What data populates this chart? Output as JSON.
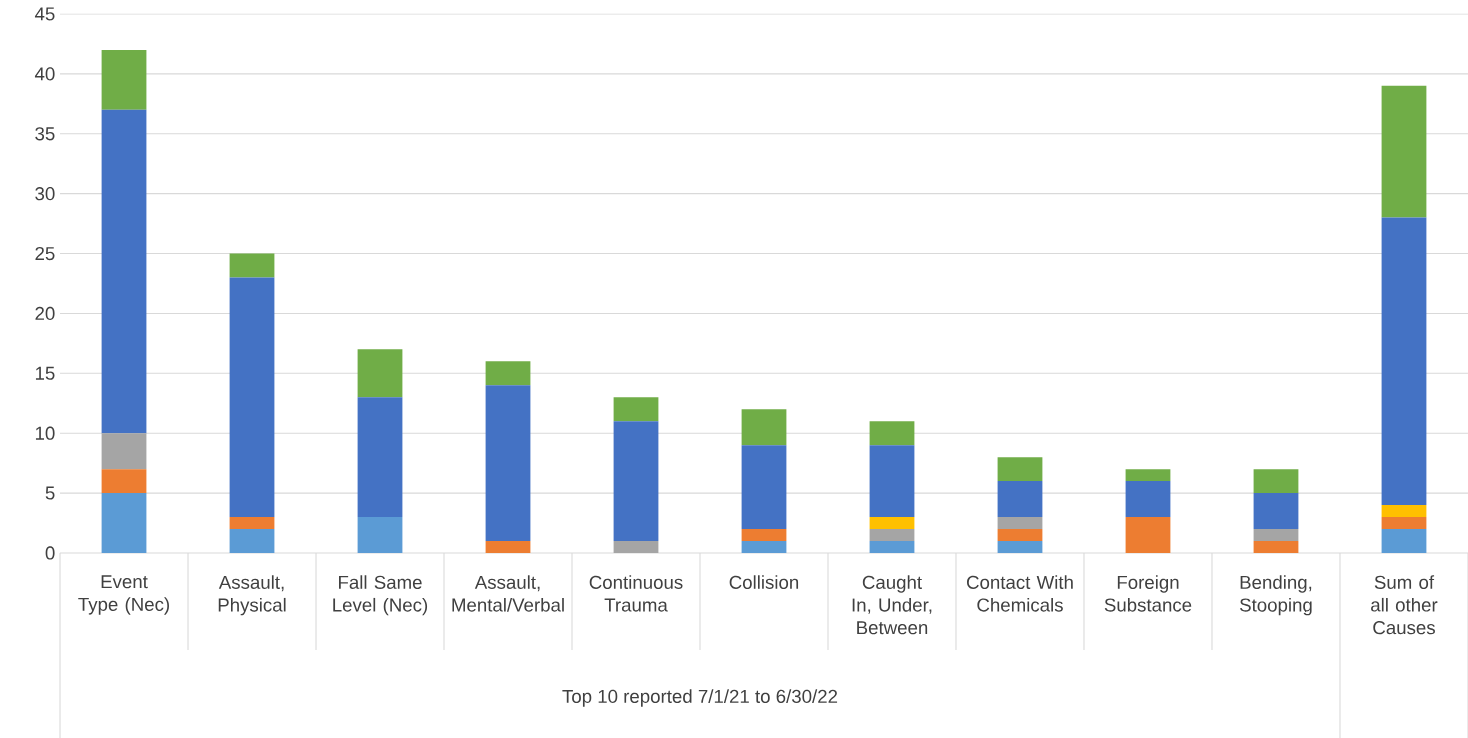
{
  "chart_data": {
    "type": "bar",
    "stacked": true,
    "grid": "y",
    "ylim": [
      0,
      45
    ],
    "yticks": [
      0,
      5,
      10,
      15,
      20,
      25,
      30,
      35,
      40,
      45
    ],
    "categories": [
      "Event Type (Nec)",
      "Assault, Physical",
      "Fall Same Level (Nec)",
      "Assault, Mental/Verbal",
      "Continuous Trauma",
      "Collision",
      "Caught In, Under, Between",
      "Contact With Chemicals",
      "Foreign Substance",
      "Bending, Stooping",
      "Sum of all other Causes"
    ],
    "annotations": [
      "Top 10 reported 7/1/21 to 6/30/22"
    ],
    "series": [
      {
        "color": "#5b9bd5",
        "values": [
          5,
          2,
          3,
          0,
          0,
          1,
          1,
          1,
          0,
          0,
          2
        ]
      },
      {
        "color": "#ed7d31",
        "values": [
          2,
          1,
          0,
          1,
          0,
          1,
          0,
          1,
          3,
          1,
          1
        ]
      },
      {
        "color": "#a5a5a5",
        "values": [
          3,
          0,
          0,
          0,
          1,
          0,
          1,
          1,
          0,
          1,
          0
        ]
      },
      {
        "color": "#ffc000",
        "values": [
          0,
          0,
          0,
          0,
          0,
          0,
          1,
          0,
          0,
          0,
          1
        ]
      },
      {
        "color": "#4472c4",
        "values": [
          27,
          20,
          10,
          13,
          10,
          7,
          6,
          3,
          3,
          3,
          24
        ]
      },
      {
        "color": "#70ad47",
        "values": [
          5,
          2,
          4,
          2,
          2,
          3,
          2,
          2,
          1,
          2,
          11
        ]
      }
    ]
  }
}
